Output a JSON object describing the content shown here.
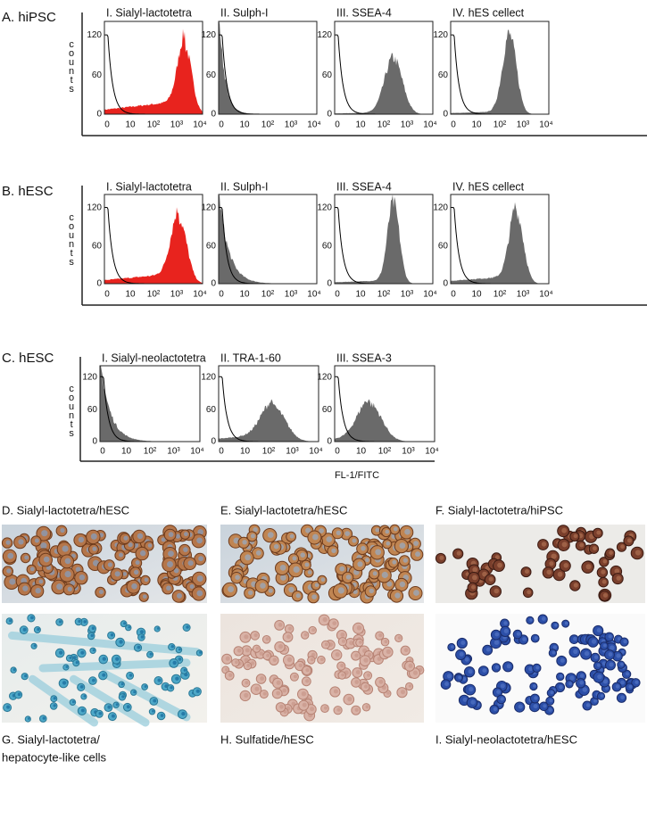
{
  "rows": [
    {
      "label": "A. hiPSC",
      "panels": [
        {
          "title": "I. Sialyl-lactotetra",
          "fill": "#e8231e"
        },
        {
          "title": "II. Sulph-I",
          "fill": "#6a6a6a"
        },
        {
          "title": "III. SSEA-4",
          "fill": "#6a6a6a"
        },
        {
          "title": "IV. hES cellect",
          "fill": "#6a6a6a"
        }
      ]
    },
    {
      "label": "B. hESC",
      "panels": [
        {
          "title": "I. Sialyl-lactotetra",
          "fill": "#e8231e"
        },
        {
          "title": "II. Sulph-I",
          "fill": "#6a6a6a"
        },
        {
          "title": "III. SSEA-4",
          "fill": "#6a6a6a"
        },
        {
          "title": "IV. hES cellect",
          "fill": "#6a6a6a"
        }
      ]
    },
    {
      "label": "C. hESC",
      "panels": [
        {
          "title": "I. Sialyl-neolactotetra",
          "fill": "#6a6a6a"
        },
        {
          "title": "II. TRA-1-60",
          "fill": "#6a6a6a"
        },
        {
          "title": "III. SSEA-3",
          "fill": "#6a6a6a"
        }
      ]
    }
  ],
  "y_axis_label": "counts",
  "yticks": [
    "120",
    "60",
    "0"
  ],
  "xticks": [
    "0",
    "10",
    "10²",
    "10³",
    "10⁴"
  ],
  "x_axis_label": "FL-1/FITC",
  "images": [
    {
      "caption": [
        "D. Sialyl-lactotetra/hESC"
      ]
    },
    {
      "caption": [
        "E. Sialyl-lactotetra/hESC"
      ]
    },
    {
      "caption": [
        "F. Sialyl-lactotetra/hiPSC"
      ]
    },
    {
      "caption": [
        "G. Sialyl-lactotetra/",
        "hepatocyte-like cells"
      ]
    },
    {
      "caption": [
        "H. Sulfatide/hESC"
      ]
    },
    {
      "caption": [
        "I. Sialyl-neolactotetra/hESC"
      ]
    }
  ]
}
